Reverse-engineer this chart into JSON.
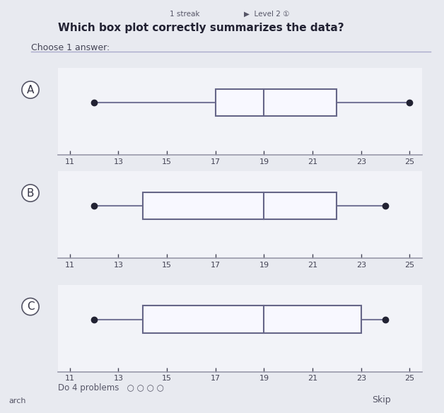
{
  "title": "Which box plot correctly summarizes the data?",
  "subtitle": "Choose 1 answer:",
  "page_bg": "#e8eaf0",
  "content_bg": "#f2f3f8",
  "plots": [
    {
      "label": "A",
      "min": 12,
      "q1": 17,
      "median": 19,
      "q3": 22,
      "max": 25,
      "xmin": 11,
      "xmax": 25,
      "xticks": [
        11,
        13,
        15,
        17,
        19,
        21,
        23,
        25
      ]
    },
    {
      "label": "B",
      "min": 12,
      "q1": 14,
      "median": 19,
      "q3": 22,
      "max": 24,
      "xmin": 11,
      "xmax": 25,
      "xticks": [
        11,
        13,
        15,
        17,
        19,
        21,
        23,
        25
      ]
    },
    {
      "label": "C",
      "min": 12,
      "q1": 14,
      "median": 19,
      "q3": 23,
      "max": 24,
      "xmin": 11,
      "xmax": 25,
      "xticks": [
        11,
        13,
        15,
        17,
        19,
        21,
        23,
        25
      ]
    }
  ],
  "box_facecolor": "#f8f8ff",
  "box_edge_color": "#666688",
  "whisker_color": "#777799",
  "dot_color": "#222233",
  "label_color": "#333344",
  "tick_label_fontsize": 8,
  "label_fontsize": 11,
  "title_fontsize": 11,
  "subtitle_fontsize": 9
}
